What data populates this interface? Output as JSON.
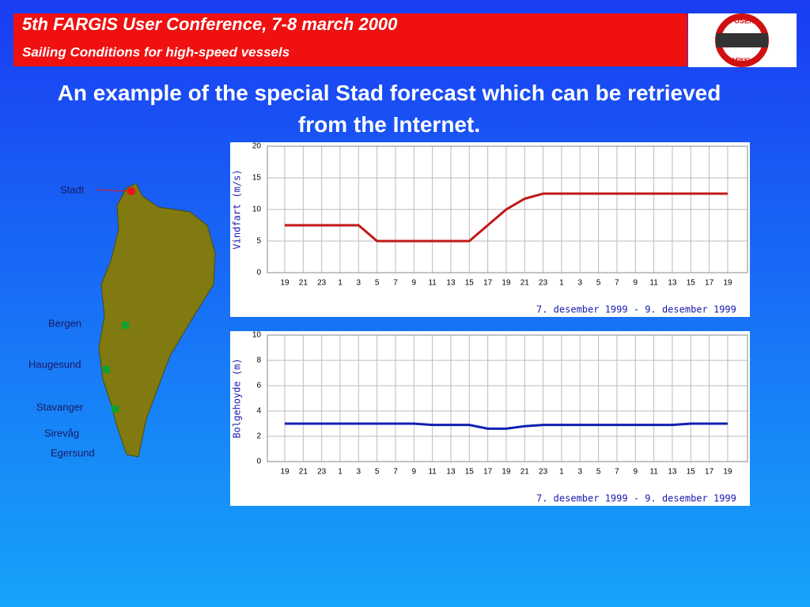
{
  "header": {
    "title": "5th FARGIS User Conference, 7-8 march 2000",
    "subtitle": "Sailing Conditions for high-speed vessels",
    "logo_top": "FOSEN",
    "logo_bottom": "TRAFIKKLAG"
  },
  "heading": "An example of the special Stad forecast which can be retrieved from the Internet.",
  "map": {
    "places": [
      "Stadt",
      "Bergen",
      "Haugesund",
      "Stavanger",
      "Sirevåg",
      "Egersund"
    ]
  },
  "chart_data": [
    {
      "type": "line",
      "ylabel": "Vindfart (m/s)",
      "xlabel": "7. desember 1999 - 9. desember 1999",
      "categories": [
        "19",
        "21",
        "23",
        "1",
        "3",
        "5",
        "7",
        "9",
        "11",
        "13",
        "15",
        "17",
        "19",
        "21",
        "23",
        "1",
        "3",
        "5",
        "7",
        "9",
        "11",
        "13",
        "15",
        "17",
        "19"
      ],
      "values": [
        7.5,
        7.5,
        7.5,
        7.5,
        7.5,
        5,
        5,
        5,
        5,
        5,
        5,
        7.5,
        10,
        11.7,
        12.5,
        12.5,
        12.5,
        12.5,
        12.5,
        12.5,
        12.5,
        12.5,
        12.5,
        12.5,
        12.5
      ],
      "color": "#c01818",
      "ylim": [
        0,
        20
      ],
      "yticks": [
        0,
        5,
        10,
        15,
        20
      ],
      "grid": true
    },
    {
      "type": "line",
      "ylabel": "Bolgehoyde (m)",
      "xlabel": "7. desember 1999 - 9. desember 1999",
      "categories": [
        "19",
        "21",
        "23",
        "1",
        "3",
        "5",
        "7",
        "9",
        "11",
        "13",
        "15",
        "17",
        "19",
        "21",
        "23",
        "1",
        "3",
        "5",
        "7",
        "9",
        "11",
        "13",
        "15",
        "17",
        "19"
      ],
      "values": [
        3,
        3,
        3,
        3,
        3,
        3,
        3,
        3,
        2.9,
        2.9,
        2.9,
        2.6,
        2.6,
        2.8,
        2.9,
        2.9,
        2.9,
        2.9,
        2.9,
        2.9,
        2.9,
        2.9,
        3,
        3,
        3
      ],
      "color": "#1020b0",
      "ylim": [
        0,
        10
      ],
      "yticks": [
        0,
        2,
        4,
        6,
        8,
        10
      ],
      "grid": true
    }
  ]
}
